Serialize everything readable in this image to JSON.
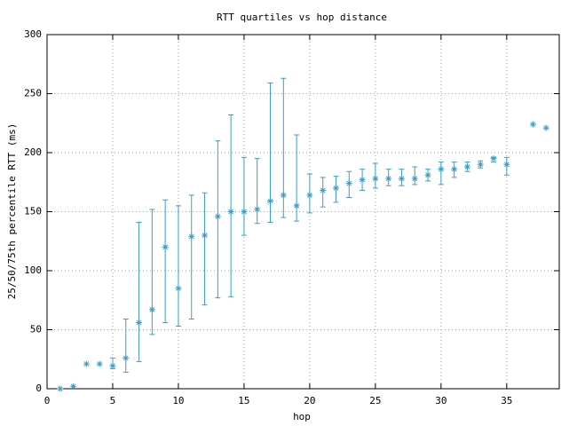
{
  "chart_data": {
    "type": "errorbar",
    "title": "RTT quartiles vs hop distance",
    "x_label": "hop",
    "y_label": "25/50/75th percentile RTT (ms)",
    "xlim": [
      0,
      39
    ],
    "xticks": [
      0,
      5,
      10,
      15,
      20,
      25,
      30,
      35
    ],
    "ylim": [
      0,
      300
    ],
    "yticks": [
      0,
      50,
      100,
      150,
      200,
      250,
      300
    ],
    "grid": true,
    "series": [
      {
        "color": "#3a9ec9",
        "x": [
          1,
          2,
          3,
          4,
          5,
          6,
          7,
          8,
          9,
          10,
          11,
          12,
          13,
          14,
          15,
          16,
          17,
          18,
          19,
          20,
          21,
          22,
          23,
          24,
          25,
          26,
          27,
          28,
          29,
          30,
          31,
          32,
          33,
          34,
          35,
          37,
          38
        ],
        "values": [
          0,
          2,
          21,
          21,
          19.5,
          26,
          56,
          67,
          120,
          85,
          129,
          130,
          146,
          150,
          150,
          152,
          159,
          164,
          155,
          164,
          168,
          170,
          174,
          177,
          178,
          178,
          178,
          178,
          181,
          186,
          186,
          188,
          190,
          195,
          190,
          224,
          221
        ],
        "low": [
          null,
          null,
          null,
          null,
          17,
          14,
          23,
          46,
          56,
          53,
          59,
          71,
          77,
          78,
          130,
          140,
          141,
          145,
          142,
          149,
          154,
          158,
          162,
          168,
          170,
          172,
          172,
          173,
          176,
          173,
          179,
          184,
          187,
          192,
          181,
          null,
          null
        ],
        "high": [
          null,
          null,
          null,
          null,
          26,
          59,
          141,
          152,
          160,
          155,
          164,
          166,
          210,
          232,
          196,
          195,
          259,
          263,
          215,
          182,
          179,
          180,
          184,
          186,
          191,
          186,
          186,
          188,
          186,
          192,
          192,
          192,
          193,
          196,
          196,
          null,
          null
        ]
      }
    ]
  }
}
